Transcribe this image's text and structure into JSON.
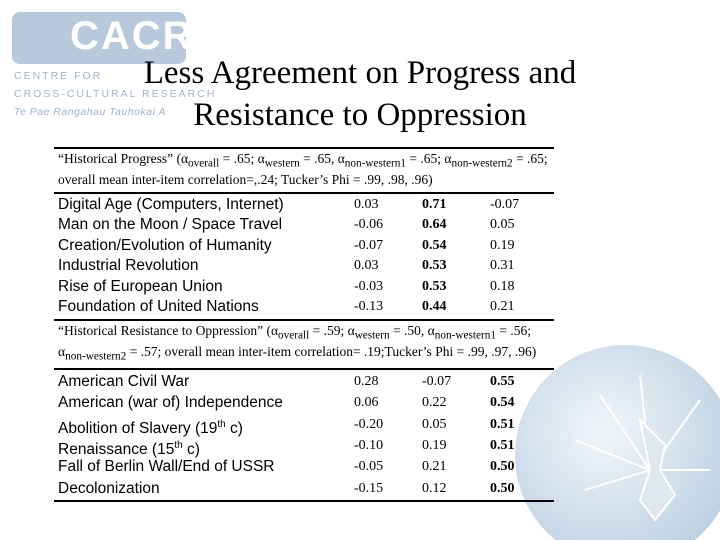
{
  "logo": {
    "mark": "CACR",
    "lines": [
      "CENTRE FOR",
      "CROSS-CULTURAL RESEARCH",
      "Te Pae Rangahau Tauhokai A"
    ]
  },
  "title": "Less Agreement on Progress and Resistance to Oppression",
  "sections": [
    {
      "header": [
        "“Historical Progress” (α",
        "overall",
        " = .65; α",
        "western",
        " = .65, α",
        "non-western1",
        " = .65; α",
        "non-western2",
        " = .65; overall mean inter-item correlation=,.24; Tucker’s Phi = .99, .98, .96)"
      ],
      "bold_column": 1,
      "rows": [
        {
          "label": [
            "Digital Age (Computers, Internet)"
          ],
          "values": [
            "0.03",
            "0.71",
            "-0.07"
          ]
        },
        {
          "label": [
            "Man on the Moon / Space Travel"
          ],
          "values": [
            "-0.06",
            "0.64",
            "0.05"
          ]
        },
        {
          "label": [
            "Creation/Evolution of Humanity"
          ],
          "values": [
            "-0.07",
            "0.54",
            "0.19"
          ]
        },
        {
          "label": [
            "Industrial Revolution"
          ],
          "values": [
            "0.03",
            "0.53",
            "0.31"
          ]
        },
        {
          "label": [
            "Rise of European Union"
          ],
          "values": [
            "-0.03",
            "0.53",
            "0.18"
          ]
        },
        {
          "label": [
            "Foundation of United Nations"
          ],
          "values": [
            "-0.13",
            "0.44",
            "0.21"
          ]
        }
      ]
    },
    {
      "header": [
        "“Historical Resistance to Oppression” (α",
        "overall",
        " = .59; α",
        "western",
        " = .50, α",
        "non-western1",
        " = .56; α",
        "non-western2",
        " = .57; overall mean inter-item correlation= .19;Tucker’s Phi = .99, .97, .96)"
      ],
      "bold_column": 2,
      "rows": [
        {
          "label": [
            "American Civil War"
          ],
          "values": [
            "0.28",
            "-0.07",
            "0.55"
          ]
        },
        {
          "label": [
            "American (war of) Independence"
          ],
          "values": [
            "0.06",
            "0.22",
            "0.54"
          ]
        },
        {
          "label": [
            "Abolition of Slavery (19",
            "th",
            " c)"
          ],
          "values": [
            "-0.20",
            "0.05",
            "0.51"
          ]
        },
        {
          "label": [
            "Renaissance (15",
            "th",
            " c)"
          ],
          "values": [
            "-0.10",
            "0.19",
            "0.51"
          ]
        },
        {
          "label": [
            "Fall of Berlin Wall/End of USSR"
          ],
          "values": [
            "-0.05",
            "0.21",
            "0.50"
          ]
        },
        {
          "label": [
            "Decolonization"
          ],
          "values": [
            "-0.15",
            "0.12",
            "0.50"
          ]
        }
      ]
    }
  ]
}
